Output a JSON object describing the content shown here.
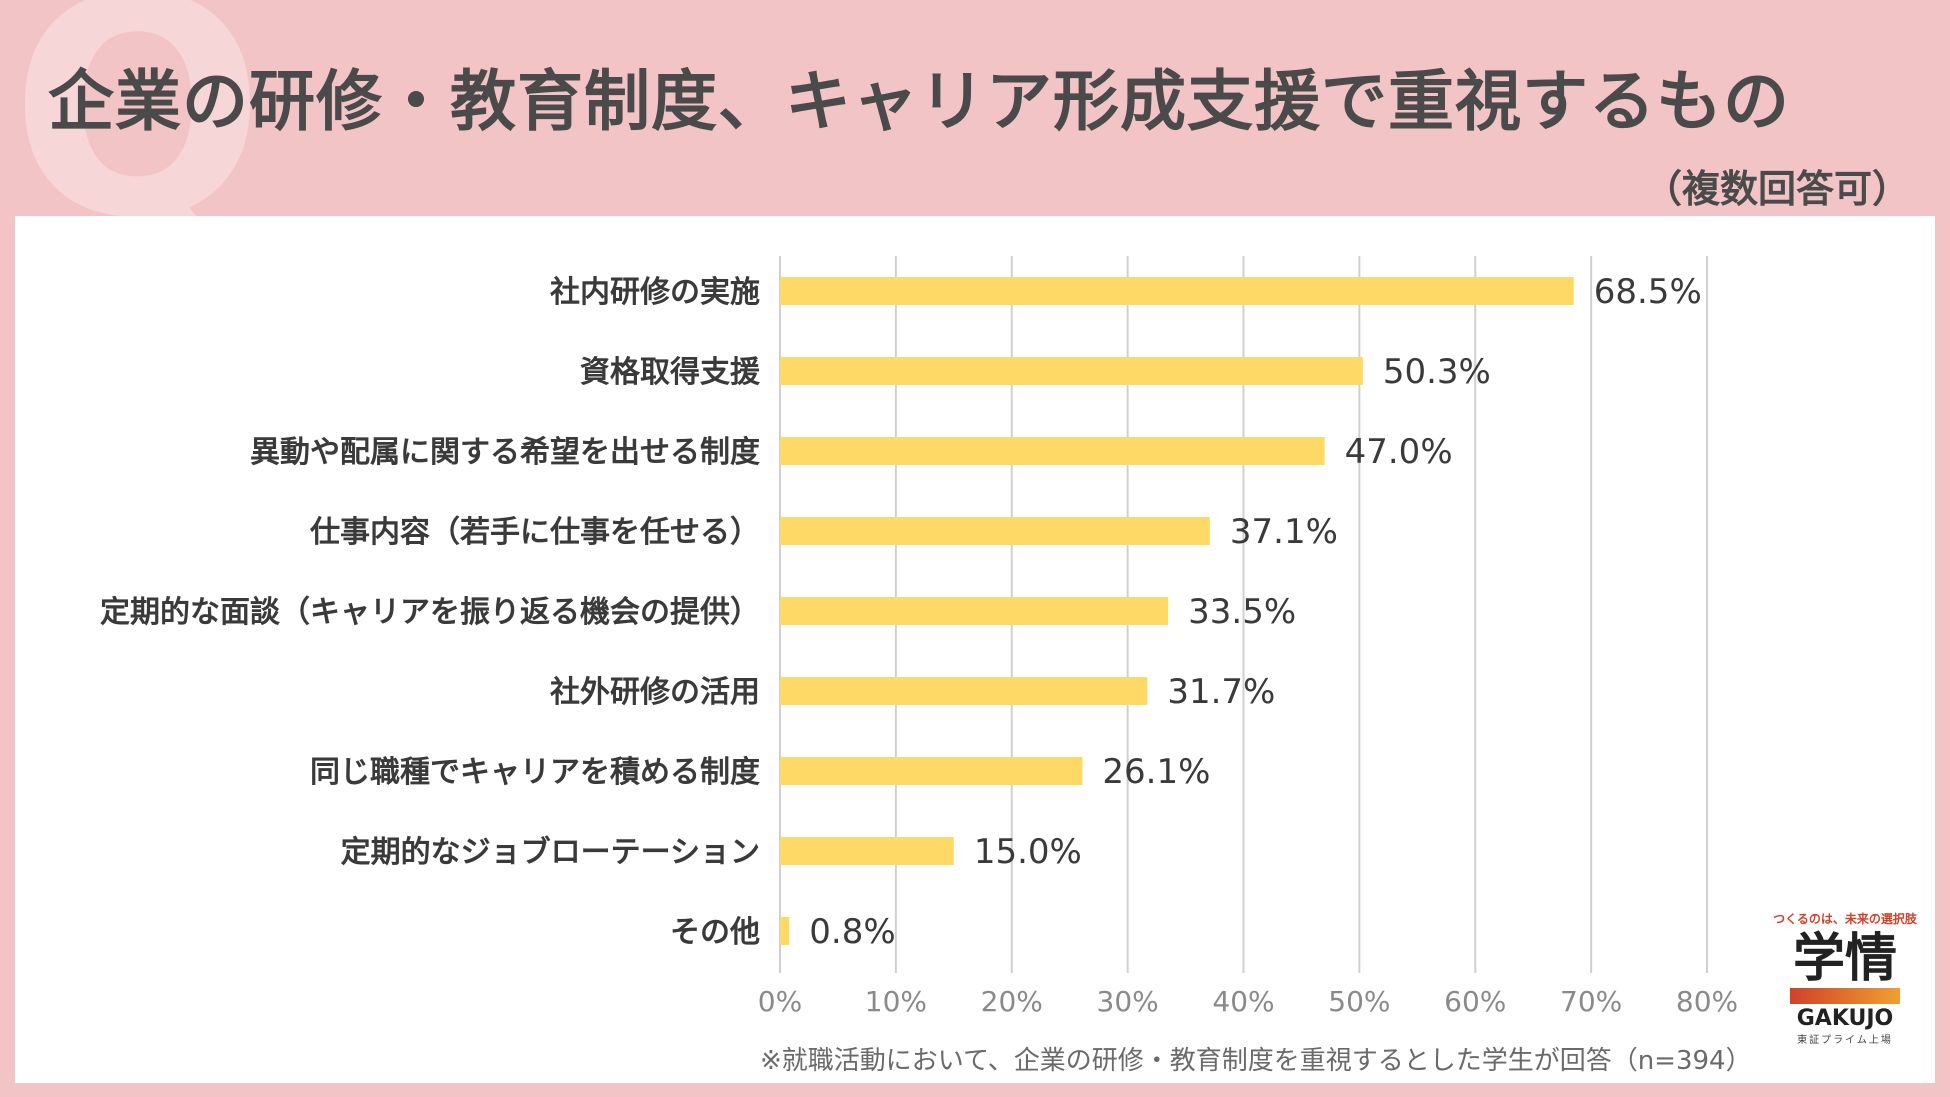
{
  "header": {
    "q_mark": "Q",
    "title": "企業の研修・教育制度、キャリア形成支援で重視するもの",
    "subtitle": "（複数回答可）"
  },
  "footnote": "※就職活動において、企業の研修・教育制度を重視するとした学生が回答（n=394）",
  "logo": {
    "tagline": "つくるのは、未来の選択肢",
    "main": "学情",
    "english": "GAKUJO",
    "sub": "東証プライム上場"
  },
  "colors": {
    "bar": "#ffd966",
    "background": "#f2c4c6",
    "panel": "#ffffff"
  },
  "chart_data": {
    "type": "bar",
    "orientation": "horizontal",
    "categories": [
      "社内研修の実施",
      "資格取得支援",
      "異動や配属に関する希望を出せる制度",
      "仕事内容（若手に仕事を任せる）",
      "定期的な面談（キャリアを振り返る機会の提供）",
      "社外研修の活用",
      "同じ職種でキャリアを積める制度",
      "定期的なジョブローテーション",
      "その他"
    ],
    "values": [
      68.5,
      50.3,
      47.0,
      37.1,
      33.5,
      31.7,
      26.1,
      15.0,
      0.8
    ],
    "value_labels": [
      "68.5%",
      "50.3%",
      "47.0%",
      "37.1%",
      "33.5%",
      "31.7%",
      "26.1%",
      "15.0%",
      "0.8%"
    ],
    "xlim": [
      0,
      80
    ],
    "ticks": [
      0,
      10,
      20,
      30,
      40,
      50,
      60,
      70,
      80
    ],
    "tick_labels": [
      "0%",
      "10%",
      "20%",
      "30%",
      "40%",
      "50%",
      "60%",
      "70%",
      "80%"
    ],
    "grid": true
  }
}
